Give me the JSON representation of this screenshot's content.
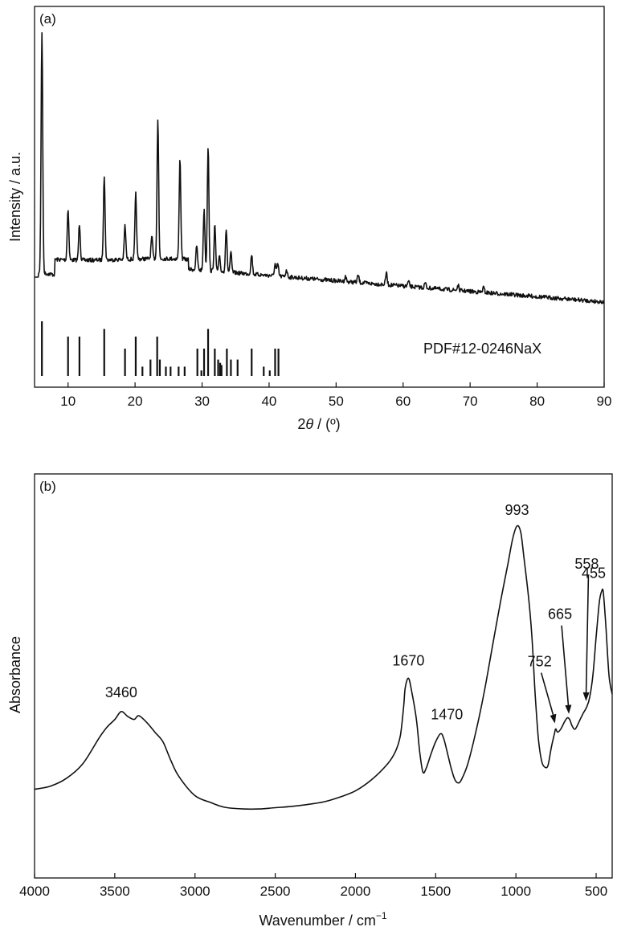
{
  "chart_data": [
    {
      "type": "line",
      "panel_label": "(a)",
      "xlabel_prefix": "2",
      "xlabel_symbol": "θ",
      "xlabel_suffix": " / (º)",
      "ylabel": "Intensity / a.u.",
      "xlim": [
        5,
        90
      ],
      "x_ticks": [
        10,
        20,
        30,
        40,
        50,
        60,
        70,
        80,
        90
      ],
      "y_ticks_shown": false,
      "series": [
        {
          "peaks": [
            {
              "x": 6.1,
              "y": 100
            },
            {
              "x": 10.0,
              "y": 21
            },
            {
              "x": 11.7,
              "y": 15
            },
            {
              "x": 15.4,
              "y": 35
            },
            {
              "x": 18.5,
              "y": 14
            },
            {
              "x": 20.1,
              "y": 27
            },
            {
              "x": 22.5,
              "y": 9
            },
            {
              "x": 23.4,
              "y": 58
            },
            {
              "x": 26.7,
              "y": 42
            },
            {
              "x": 29.2,
              "y": 10
            },
            {
              "x": 30.3,
              "y": 25
            },
            {
              "x": 30.9,
              "y": 52
            },
            {
              "x": 31.9,
              "y": 19
            },
            {
              "x": 32.6,
              "y": 6
            },
            {
              "x": 33.6,
              "y": 18
            },
            {
              "x": 34.3,
              "y": 8
            },
            {
              "x": 37.4,
              "y": 8
            },
            {
              "x": 40.9,
              "y": 5
            },
            {
              "x": 41.3,
              "y": 5
            },
            {
              "x": 42.6,
              "y": 3
            },
            {
              "x": 51.4,
              "y": 2
            },
            {
              "x": 53.3,
              "y": 3
            },
            {
              "x": 57.5,
              "y": 5
            },
            {
              "x": 60.8,
              "y": 2
            },
            {
              "x": 63.3,
              "y": 2
            },
            {
              "x": 68.2,
              "y": 2
            },
            {
              "x": 72.0,
              "y": 2
            }
          ]
        }
      ],
      "reference": {
        "label": "PDF#12-0246NaX",
        "lines": [
          {
            "x": 6.1,
            "h": 1.0
          },
          {
            "x": 10.0,
            "h": 0.72
          },
          {
            "x": 11.7,
            "h": 0.72
          },
          {
            "x": 15.4,
            "h": 0.86
          },
          {
            "x": 18.5,
            "h": 0.5
          },
          {
            "x": 20.1,
            "h": 0.72
          },
          {
            "x": 21.1,
            "h": 0.17
          },
          {
            "x": 22.3,
            "h": 0.3
          },
          {
            "x": 23.3,
            "h": 0.72
          },
          {
            "x": 23.7,
            "h": 0.3
          },
          {
            "x": 24.6,
            "h": 0.17
          },
          {
            "x": 25.3,
            "h": 0.17
          },
          {
            "x": 26.5,
            "h": 0.17
          },
          {
            "x": 27.4,
            "h": 0.17
          },
          {
            "x": 29.3,
            "h": 0.5
          },
          {
            "x": 29.9,
            "h": 0.1
          },
          {
            "x": 30.3,
            "h": 0.5
          },
          {
            "x": 30.9,
            "h": 0.86
          },
          {
            "x": 31.9,
            "h": 0.5
          },
          {
            "x": 32.4,
            "h": 0.3
          },
          {
            "x": 32.7,
            "h": 0.24
          },
          {
            "x": 32.9,
            "h": 0.2
          },
          {
            "x": 33.7,
            "h": 0.5
          },
          {
            "x": 34.3,
            "h": 0.3
          },
          {
            "x": 35.3,
            "h": 0.3
          },
          {
            "x": 37.4,
            "h": 0.5
          },
          {
            "x": 39.2,
            "h": 0.17
          },
          {
            "x": 40.1,
            "h": 0.1
          },
          {
            "x": 40.9,
            "h": 0.5
          },
          {
            "x": 41.4,
            "h": 0.5
          }
        ]
      }
    },
    {
      "type": "line",
      "panel_label": "(b)",
      "xlabel": "Wavenumber / cm",
      "xlabel_sup": "−1",
      "ylabel": "Absorbance",
      "xlim": [
        4000,
        400
      ],
      "x_ticks": [
        4000,
        3500,
        3000,
        2500,
        2000,
        1500,
        1000,
        500
      ],
      "y_ticks_shown": false,
      "series": [
        {
          "points": [
            [
              4000,
              0.12
            ],
            [
              3900,
              0.13
            ],
            [
              3800,
              0.155
            ],
            [
              3700,
              0.2
            ],
            [
              3600,
              0.28
            ],
            [
              3550,
              0.315
            ],
            [
              3500,
              0.34
            ],
            [
              3460,
              0.365
            ],
            [
              3420,
              0.35
            ],
            [
              3380,
              0.34
            ],
            [
              3350,
              0.352
            ],
            [
              3300,
              0.33
            ],
            [
              3250,
              0.3
            ],
            [
              3200,
              0.27
            ],
            [
              3150,
              0.21
            ],
            [
              3100,
              0.16
            ],
            [
              3000,
              0.1
            ],
            [
              2900,
              0.078
            ],
            [
              2850,
              0.068
            ],
            [
              2800,
              0.062
            ],
            [
              2700,
              0.058
            ],
            [
              2600,
              0.058
            ],
            [
              2500,
              0.062
            ],
            [
              2400,
              0.066
            ],
            [
              2300,
              0.072
            ],
            [
              2200,
              0.08
            ],
            [
              2100,
              0.095
            ],
            [
              2000,
              0.115
            ],
            [
              1900,
              0.15
            ],
            [
              1800,
              0.2
            ],
            [
              1750,
              0.24
            ],
            [
              1720,
              0.29
            ],
            [
              1700,
              0.38
            ],
            [
              1690,
              0.44
            ],
            [
              1670,
              0.47
            ],
            [
              1650,
              0.43
            ],
            [
              1620,
              0.34
            ],
            [
              1600,
              0.24
            ],
            [
              1580,
              0.175
            ],
            [
              1560,
              0.185
            ],
            [
              1530,
              0.23
            ],
            [
              1500,
              0.27
            ],
            [
              1470,
              0.295
            ],
            [
              1450,
              0.28
            ],
            [
              1420,
              0.22
            ],
            [
              1400,
              0.18
            ],
            [
              1380,
              0.15
            ],
            [
              1360,
              0.14
            ],
            [
              1340,
              0.15
            ],
            [
              1300,
              0.2
            ],
            [
              1250,
              0.3
            ],
            [
              1200,
              0.42
            ],
            [
              1150,
              0.56
            ],
            [
              1100,
              0.7
            ],
            [
              1050,
              0.83
            ],
            [
              1020,
              0.91
            ],
            [
              993,
              0.95
            ],
            [
              970,
              0.93
            ],
            [
              950,
              0.85
            ],
            [
              920,
              0.72
            ],
            [
              900,
              0.6
            ],
            [
              880,
              0.42
            ],
            [
              860,
              0.28
            ],
            [
              840,
              0.21
            ],
            [
              820,
              0.19
            ],
            [
              800,
              0.195
            ],
            [
              780,
              0.25
            ],
            [
              760,
              0.295
            ],
            [
              752,
              0.31
            ],
            [
              740,
              0.3
            ],
            [
              720,
              0.31
            ],
            [
              700,
              0.33
            ],
            [
              680,
              0.345
            ],
            [
              665,
              0.34
            ],
            [
              650,
              0.32
            ],
            [
              630,
              0.31
            ],
            [
              600,
              0.34
            ],
            [
              580,
              0.36
            ],
            [
              558,
              0.38
            ],
            [
              540,
              0.41
            ],
            [
              520,
              0.48
            ],
            [
              500,
              0.6
            ],
            [
              480,
              0.71
            ],
            [
              465,
              0.745
            ],
            [
              455,
              0.74
            ],
            [
              440,
              0.64
            ],
            [
              420,
              0.48
            ],
            [
              400,
              0.42
            ]
          ]
        }
      ],
      "annotations": [
        {
          "label": "3460",
          "x": 3460,
          "arrow": false
        },
        {
          "label": "1670",
          "x": 1670,
          "arrow": false
        },
        {
          "label": "1470",
          "x": 1470,
          "arrow": false
        },
        {
          "label": "993",
          "x": 993,
          "arrow": false
        },
        {
          "label": "752",
          "x": 752,
          "arrow": true
        },
        {
          "label": "665",
          "x": 665,
          "arrow": true
        },
        {
          "label": "558",
          "x": 558,
          "arrow": true
        },
        {
          "label": "455",
          "x": 455,
          "arrow": false
        }
      ]
    }
  ]
}
